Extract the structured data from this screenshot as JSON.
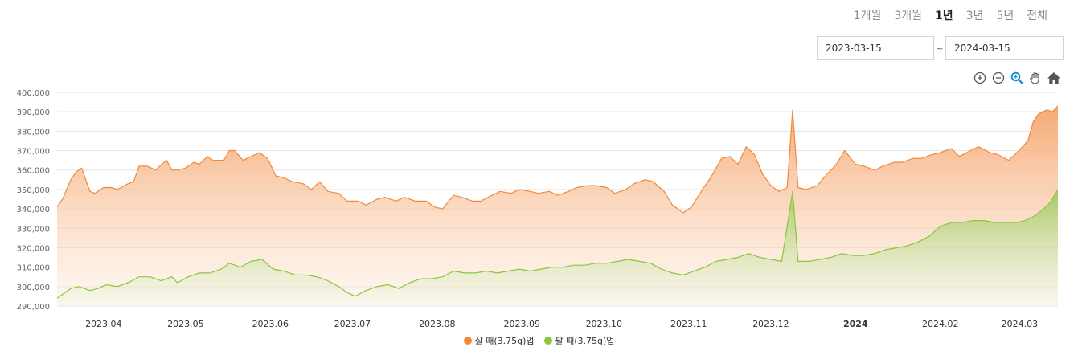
{
  "tabs": [
    {
      "label": "1개월",
      "active": false
    },
    {
      "label": "3개월",
      "active": false
    },
    {
      "label": "1년",
      "active": true
    },
    {
      "label": "3년",
      "active": false
    },
    {
      "label": "5년",
      "active": false
    },
    {
      "label": "전체",
      "active": false
    }
  ],
  "range": {
    "start": "2023-03-15",
    "separator": "~",
    "end": "2024-03-15"
  },
  "toolbar": [
    "zoom-in-icon",
    "zoom-out-icon",
    "magnify-icon",
    "pan-hand-icon",
    "home-icon"
  ],
  "colors": {
    "buy": "#f08a3c",
    "sell": "#8cc63f",
    "grid": "#e5e5e5",
    "axis_text": "#666666"
  },
  "chart_data": {
    "type": "area",
    "title": "",
    "xlabel": "",
    "ylabel": "",
    "ylim": [
      290000,
      400000
    ],
    "y_ticks": [
      "290,000",
      "300,000",
      "310,000",
      "320,000",
      "330,000",
      "340,000",
      "350,000",
      "360,000",
      "370,000",
      "380,000",
      "390,000",
      "400,000"
    ],
    "x_ticks": [
      {
        "date": "2023-04-01",
        "label": "2023.04",
        "bold": false
      },
      {
        "date": "2023-05-01",
        "label": "2023.05",
        "bold": false
      },
      {
        "date": "2023-06-01",
        "label": "2023.06",
        "bold": false
      },
      {
        "date": "2023-07-01",
        "label": "2023.07",
        "bold": false
      },
      {
        "date": "2023-08-01",
        "label": "2023.08",
        "bold": false
      },
      {
        "date": "2023-09-01",
        "label": "2023.09",
        "bold": false
      },
      {
        "date": "2023-10-01",
        "label": "2023.10",
        "bold": false
      },
      {
        "date": "2023-11-01",
        "label": "2023.11",
        "bold": false
      },
      {
        "date": "2023-12-01",
        "label": "2023.12",
        "bold": false
      },
      {
        "date": "2024-01-01",
        "label": "2024",
        "bold": true
      },
      {
        "date": "2024-02-01",
        "label": "2024.02",
        "bold": false
      },
      {
        "date": "2024-03-01",
        "label": "2024.03",
        "bold": false
      }
    ],
    "xlim": [
      "2023-03-15",
      "2024-03-15"
    ],
    "grid": true,
    "legend_position": "bottom-center",
    "series": [
      {
        "name": "살 때(3.75g)업",
        "color": "#f08a3c",
        "points": [
          [
            "2023-03-15",
            341000
          ],
          [
            "2023-03-17",
            345000
          ],
          [
            "2023-03-20",
            355000
          ],
          [
            "2023-03-22",
            359000
          ],
          [
            "2023-03-24",
            361000
          ],
          [
            "2023-03-27",
            349000
          ],
          [
            "2023-03-29",
            348000
          ],
          [
            "2023-04-01",
            351000
          ],
          [
            "2023-04-04",
            351000
          ],
          [
            "2023-04-06",
            350000
          ],
          [
            "2023-04-10",
            353000
          ],
          [
            "2023-04-12",
            354000
          ],
          [
            "2023-04-14",
            362000
          ],
          [
            "2023-04-17",
            362000
          ],
          [
            "2023-04-20",
            360000
          ],
          [
            "2023-04-24",
            365000
          ],
          [
            "2023-04-26",
            360000
          ],
          [
            "2023-04-28",
            360000
          ],
          [
            "2023-05-01",
            361000
          ],
          [
            "2023-05-04",
            364000
          ],
          [
            "2023-05-06",
            363000
          ],
          [
            "2023-05-09",
            367000
          ],
          [
            "2023-05-11",
            365000
          ],
          [
            "2023-05-15",
            365000
          ],
          [
            "2023-05-17",
            370000
          ],
          [
            "2023-05-19",
            370000
          ],
          [
            "2023-05-22",
            365000
          ],
          [
            "2023-05-25",
            367000
          ],
          [
            "2023-05-28",
            369000
          ],
          [
            "2023-05-31",
            366000
          ],
          [
            "2023-06-03",
            357000
          ],
          [
            "2023-06-06",
            356000
          ],
          [
            "2023-06-09",
            354000
          ],
          [
            "2023-06-13",
            353000
          ],
          [
            "2023-06-16",
            350000
          ],
          [
            "2023-06-19",
            354000
          ],
          [
            "2023-06-22",
            349000
          ],
          [
            "2023-06-26",
            348000
          ],
          [
            "2023-06-29",
            344000
          ],
          [
            "2023-07-03",
            344000
          ],
          [
            "2023-07-06",
            342000
          ],
          [
            "2023-07-10",
            345000
          ],
          [
            "2023-07-13",
            346000
          ],
          [
            "2023-07-17",
            344000
          ],
          [
            "2023-07-20",
            346000
          ],
          [
            "2023-07-24",
            344000
          ],
          [
            "2023-07-28",
            344000
          ],
          [
            "2023-07-31",
            341000
          ],
          [
            "2023-08-03",
            340000
          ],
          [
            "2023-08-07",
            347000
          ],
          [
            "2023-08-10",
            346000
          ],
          [
            "2023-08-14",
            344000
          ],
          [
            "2023-08-17",
            344000
          ],
          [
            "2023-08-21",
            347000
          ],
          [
            "2023-08-24",
            349000
          ],
          [
            "2023-08-28",
            348000
          ],
          [
            "2023-08-31",
            350000
          ],
          [
            "2023-09-04",
            349000
          ],
          [
            "2023-09-07",
            348000
          ],
          [
            "2023-09-11",
            349000
          ],
          [
            "2023-09-14",
            347000
          ],
          [
            "2023-09-18",
            349000
          ],
          [
            "2023-09-21",
            351000
          ],
          [
            "2023-09-25",
            352000
          ],
          [
            "2023-09-28",
            352000
          ],
          [
            "2023-10-02",
            351000
          ],
          [
            "2023-10-05",
            348000
          ],
          [
            "2023-10-09",
            350000
          ],
          [
            "2023-10-12",
            353000
          ],
          [
            "2023-10-16",
            355000
          ],
          [
            "2023-10-19",
            354000
          ],
          [
            "2023-10-23",
            349000
          ],
          [
            "2023-10-26",
            342000
          ],
          [
            "2023-10-30",
            338000
          ],
          [
            "2023-11-02",
            341000
          ],
          [
            "2023-11-06",
            350000
          ],
          [
            "2023-11-09",
            356000
          ],
          [
            "2023-11-13",
            366000
          ],
          [
            "2023-11-16",
            367000
          ],
          [
            "2023-11-19",
            363000
          ],
          [
            "2023-11-22",
            372000
          ],
          [
            "2023-11-25",
            368000
          ],
          [
            "2023-11-28",
            358000
          ],
          [
            "2023-12-01",
            352000
          ],
          [
            "2023-12-04",
            349000
          ],
          [
            "2023-12-07",
            351000
          ],
          [
            "2023-12-09",
            391000
          ],
          [
            "2023-12-11",
            351000
          ],
          [
            "2023-12-14",
            350000
          ],
          [
            "2023-12-18",
            352000
          ],
          [
            "2023-12-21",
            357000
          ],
          [
            "2023-12-25",
            363000
          ],
          [
            "2023-12-28",
            370000
          ],
          [
            "2024-01-01",
            363000
          ],
          [
            "2024-01-04",
            362000
          ],
          [
            "2024-01-08",
            360000
          ],
          [
            "2024-01-11",
            362000
          ],
          [
            "2024-01-15",
            364000
          ],
          [
            "2024-01-18",
            364000
          ],
          [
            "2024-01-22",
            366000
          ],
          [
            "2024-01-25",
            366000
          ],
          [
            "2024-01-29",
            368000
          ],
          [
            "2024-02-01",
            369000
          ],
          [
            "2024-02-05",
            371000
          ],
          [
            "2024-02-08",
            367000
          ],
          [
            "2024-02-12",
            370000
          ],
          [
            "2024-02-15",
            372000
          ],
          [
            "2024-02-19",
            369000
          ],
          [
            "2024-02-22",
            368000
          ],
          [
            "2024-02-26",
            365000
          ],
          [
            "2024-02-29",
            369000
          ],
          [
            "2024-03-04",
            375000
          ],
          [
            "2024-03-06",
            385000
          ],
          [
            "2024-03-08",
            389000
          ],
          [
            "2024-03-11",
            391000
          ],
          [
            "2024-03-13",
            390000
          ],
          [
            "2024-03-15",
            393000
          ]
        ]
      },
      {
        "name": "팔 때(3.75g)업",
        "color": "#8cc63f",
        "points": [
          [
            "2023-03-15",
            294000
          ],
          [
            "2023-03-17",
            296000
          ],
          [
            "2023-03-20",
            299000
          ],
          [
            "2023-03-23",
            300000
          ],
          [
            "2023-03-27",
            298000
          ],
          [
            "2023-03-30",
            299000
          ],
          [
            "2023-04-02",
            301000
          ],
          [
            "2023-04-06",
            300000
          ],
          [
            "2023-04-10",
            302000
          ],
          [
            "2023-04-14",
            305000
          ],
          [
            "2023-04-18",
            305000
          ],
          [
            "2023-04-22",
            303000
          ],
          [
            "2023-04-26",
            305000
          ],
          [
            "2023-04-28",
            302000
          ],
          [
            "2023-05-02",
            305000
          ],
          [
            "2023-05-06",
            307000
          ],
          [
            "2023-05-10",
            307000
          ],
          [
            "2023-05-14",
            309000
          ],
          [
            "2023-05-17",
            312000
          ],
          [
            "2023-05-21",
            310000
          ],
          [
            "2023-05-25",
            313000
          ],
          [
            "2023-05-29",
            314000
          ],
          [
            "2023-06-02",
            309000
          ],
          [
            "2023-06-06",
            308000
          ],
          [
            "2023-06-10",
            306000
          ],
          [
            "2023-06-14",
            306000
          ],
          [
            "2023-06-18",
            305000
          ],
          [
            "2023-06-22",
            303000
          ],
          [
            "2023-06-26",
            300000
          ],
          [
            "2023-06-29",
            297000
          ],
          [
            "2023-07-02",
            295000
          ],
          [
            "2023-07-06",
            298000
          ],
          [
            "2023-07-10",
            300000
          ],
          [
            "2023-07-14",
            301000
          ],
          [
            "2023-07-18",
            299000
          ],
          [
            "2023-07-22",
            302000
          ],
          [
            "2023-07-26",
            304000
          ],
          [
            "2023-07-30",
            304000
          ],
          [
            "2023-08-03",
            305000
          ],
          [
            "2023-08-07",
            308000
          ],
          [
            "2023-08-11",
            307000
          ],
          [
            "2023-08-15",
            307000
          ],
          [
            "2023-08-19",
            308000
          ],
          [
            "2023-08-23",
            307000
          ],
          [
            "2023-08-27",
            308000
          ],
          [
            "2023-08-31",
            309000
          ],
          [
            "2023-09-04",
            308000
          ],
          [
            "2023-09-08",
            309000
          ],
          [
            "2023-09-12",
            310000
          ],
          [
            "2023-09-16",
            310000
          ],
          [
            "2023-09-20",
            311000
          ],
          [
            "2023-09-24",
            311000
          ],
          [
            "2023-09-28",
            312000
          ],
          [
            "2023-10-02",
            312000
          ],
          [
            "2023-10-06",
            313000
          ],
          [
            "2023-10-10",
            314000
          ],
          [
            "2023-10-14",
            313000
          ],
          [
            "2023-10-18",
            312000
          ],
          [
            "2023-10-22",
            309000
          ],
          [
            "2023-10-26",
            307000
          ],
          [
            "2023-10-30",
            306000
          ],
          [
            "2023-11-03",
            308000
          ],
          [
            "2023-11-07",
            310000
          ],
          [
            "2023-11-11",
            313000
          ],
          [
            "2023-11-15",
            314000
          ],
          [
            "2023-11-19",
            315000
          ],
          [
            "2023-11-23",
            317000
          ],
          [
            "2023-11-27",
            315000
          ],
          [
            "2023-12-01",
            314000
          ],
          [
            "2023-12-05",
            313000
          ],
          [
            "2023-12-09",
            349000
          ],
          [
            "2023-12-11",
            313000
          ],
          [
            "2023-12-15",
            313000
          ],
          [
            "2023-12-19",
            314000
          ],
          [
            "2023-12-23",
            315000
          ],
          [
            "2023-12-27",
            317000
          ],
          [
            "2023-12-31",
            316000
          ],
          [
            "2024-01-04",
            316000
          ],
          [
            "2024-01-08",
            317000
          ],
          [
            "2024-01-12",
            319000
          ],
          [
            "2024-01-16",
            320000
          ],
          [
            "2024-01-20",
            321000
          ],
          [
            "2024-01-24",
            323000
          ],
          [
            "2024-01-28",
            326000
          ],
          [
            "2024-02-01",
            331000
          ],
          [
            "2024-02-05",
            333000
          ],
          [
            "2024-02-09",
            333000
          ],
          [
            "2024-02-13",
            334000
          ],
          [
            "2024-02-17",
            334000
          ],
          [
            "2024-02-21",
            333000
          ],
          [
            "2024-02-25",
            333000
          ],
          [
            "2024-02-29",
            333000
          ],
          [
            "2024-03-03",
            334000
          ],
          [
            "2024-03-06",
            336000
          ],
          [
            "2024-03-09",
            339000
          ],
          [
            "2024-03-12",
            343000
          ],
          [
            "2024-03-15",
            350000
          ]
        ]
      }
    ]
  }
}
